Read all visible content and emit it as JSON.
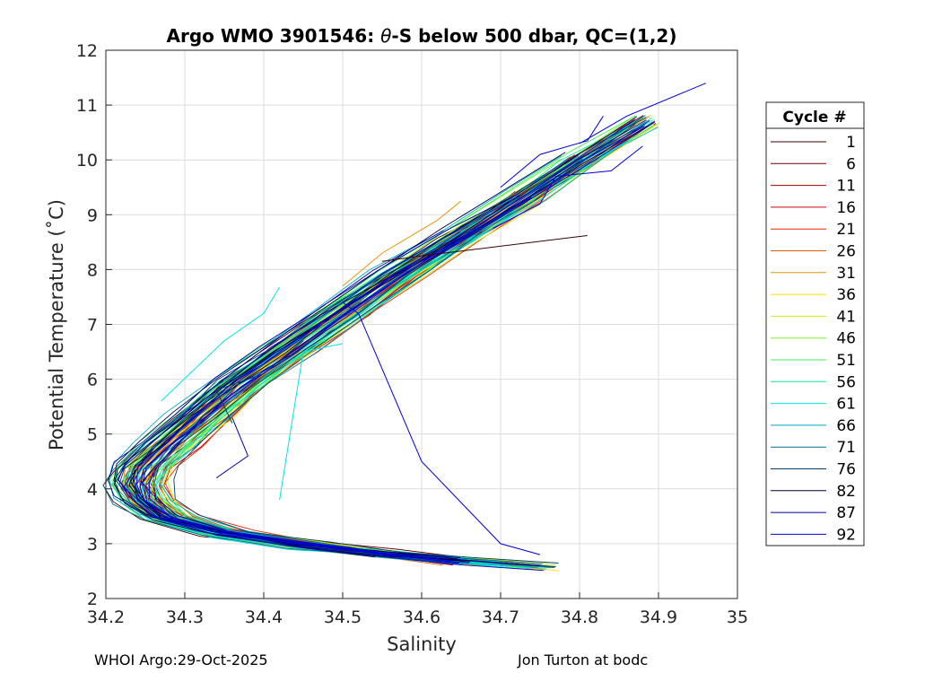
{
  "chart_data": {
    "type": "line",
    "title_prefix": "Argo WMO 3901546: ",
    "title_symbol": "θ",
    "title_suffix": "-S below 500 dbar,  QC=(1,2)",
    "xlabel": "Salinity",
    "ylabel": "Potential Temperature (˚C)",
    "xlim": [
      34.2,
      35
    ],
    "ylim": [
      2,
      12
    ],
    "xticks": [
      "34.2",
      "34.3",
      "34.4",
      "34.5",
      "34.6",
      "34.7",
      "34.8",
      "34.9",
      "35"
    ],
    "yticks": [
      "2",
      "3",
      "4",
      "5",
      "6",
      "7",
      "8",
      "9",
      "10",
      "11",
      "12"
    ],
    "grid": true,
    "legend_position": "outside-right",
    "legend_title": "Cycle #",
    "legend": [
      {
        "label": "1",
        "color": "#3c0000"
      },
      {
        "label": "6",
        "color": "#6e0000"
      },
      {
        "label": "11",
        "color": "#a00000"
      },
      {
        "label": "16",
        "color": "#d20000"
      },
      {
        "label": "21",
        "color": "#f02800"
      },
      {
        "label": "26",
        "color": "#e65a00"
      },
      {
        "label": "31",
        "color": "#e69600"
      },
      {
        "label": "36",
        "color": "#ffdc00"
      },
      {
        "label": "41",
        "color": "#c8f000"
      },
      {
        "label": "46",
        "color": "#78f028"
      },
      {
        "label": "51",
        "color": "#3cf05a"
      },
      {
        "label": "56",
        "color": "#14e6a0"
      },
      {
        "label": "61",
        "color": "#00e6e6"
      },
      {
        "label": "66",
        "color": "#00aac8"
      },
      {
        "label": "71",
        "color": "#006e96"
      },
      {
        "label": "76",
        "color": "#003c64"
      },
      {
        "label": "82",
        "color": "#00003c"
      },
      {
        "label": "87",
        "color": "#0000a0"
      },
      {
        "label": "92",
        "color": "#0000dc"
      }
    ],
    "series_template": [
      [
        34.75,
        2.58
      ],
      [
        34.65,
        2.68
      ],
      [
        34.55,
        2.82
      ],
      [
        34.45,
        2.98
      ],
      [
        34.35,
        3.2
      ],
      [
        34.28,
        3.48
      ],
      [
        34.25,
        3.8
      ],
      [
        34.24,
        4.1
      ],
      [
        34.25,
        4.4
      ],
      [
        34.28,
        4.8
      ],
      [
        34.32,
        5.3
      ],
      [
        34.37,
        5.9
      ],
      [
        34.43,
        6.5
      ],
      [
        34.5,
        7.2
      ],
      [
        34.57,
        7.9
      ],
      [
        34.65,
        8.6
      ],
      [
        34.73,
        9.3
      ],
      [
        34.8,
        10.0
      ],
      [
        34.88,
        10.7
      ]
    ],
    "extra_traces": [
      {
        "color": "#3c0000",
        "points": [
          [
            34.55,
            8.15
          ],
          [
            34.6,
            8.25
          ],
          [
            34.81,
            8.62
          ]
        ]
      },
      {
        "color": "#0000dc",
        "points": [
          [
            34.5,
            7.4
          ],
          [
            34.52,
            7.2
          ],
          [
            34.6,
            4.5
          ],
          [
            34.7,
            3.0
          ],
          [
            34.75,
            2.8
          ]
        ]
      },
      {
        "color": "#00e6e6",
        "points": [
          [
            34.42,
            3.8
          ],
          [
            34.45,
            6.5
          ],
          [
            34.5,
            6.65
          ]
        ]
      },
      {
        "color": "#00e6e6",
        "points": [
          [
            34.27,
            5.6
          ],
          [
            34.35,
            6.7
          ],
          [
            34.4,
            7.2
          ],
          [
            34.42,
            7.68
          ]
        ]
      },
      {
        "color": "#e69600",
        "points": [
          [
            34.5,
            7.7
          ],
          [
            34.55,
            8.3
          ],
          [
            34.62,
            8.9
          ],
          [
            34.65,
            9.25
          ]
        ]
      },
      {
        "color": "#0000dc",
        "points": [
          [
            34.69,
            8.75
          ],
          [
            34.75,
            9.2
          ],
          [
            34.77,
            9.7
          ],
          [
            34.84,
            9.8
          ],
          [
            34.88,
            10.25
          ]
        ]
      },
      {
        "color": "#0000dc",
        "points": [
          [
            34.7,
            9.5
          ],
          [
            34.75,
            10.1
          ],
          [
            34.81,
            10.35
          ],
          [
            34.83,
            10.8
          ]
        ]
      },
      {
        "color": "#0000dc",
        "points": [
          [
            34.8,
            10.3
          ],
          [
            34.86,
            10.8
          ],
          [
            34.96,
            11.4
          ]
        ]
      },
      {
        "color": "#003c64",
        "points": [
          [
            34.36,
            5.2
          ],
          [
            34.34,
            5.8
          ],
          [
            34.4,
            6.1
          ],
          [
            34.45,
            6.7
          ]
        ]
      },
      {
        "color": "#0000a0",
        "points": [
          [
            34.34,
            4.2
          ],
          [
            34.38,
            4.6
          ],
          [
            34.36,
            5.3
          ]
        ]
      }
    ]
  },
  "footer": {
    "left": "WHOI Argo:29-Oct-2025",
    "right": "Jon Turton at bodc"
  }
}
